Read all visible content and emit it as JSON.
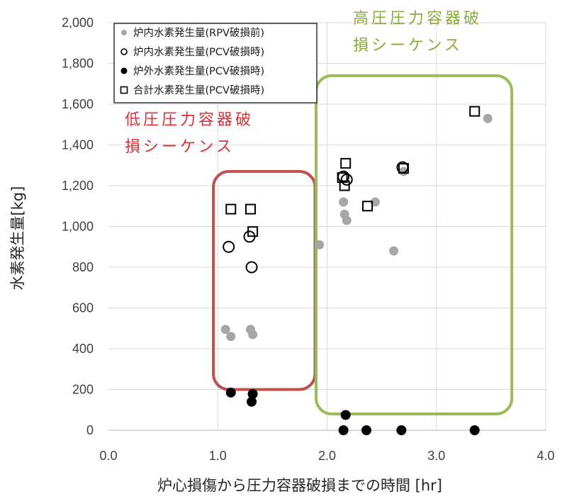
{
  "colors": {
    "grid": "#d9d9d9",
    "axis": "#bfbfbf",
    "gray_marker": "#a6a6a6",
    "black_marker": "#000000",
    "red_box": "#c0504d",
    "green_box": "#9bbb59",
    "red_text": "#d9303a",
    "green_text": "#8aac3c"
  },
  "chart_data": {
    "type": "scatter",
    "xlabel": "炉心損傷から圧力容器破損までの時間 [hr]",
    "ylabel": "水素発生量[kg]",
    "xlim": [
      0,
      4
    ],
    "ylim": [
      0,
      2000
    ],
    "x_ticks": [
      "0.0",
      "1.0",
      "2.0",
      "3.0",
      "4.0"
    ],
    "y_ticks": [
      "0",
      "200",
      "400",
      "600",
      "800",
      "1,000",
      "1,200",
      "1,400",
      "1,600",
      "1,800",
      "2,000"
    ],
    "grid": true,
    "legend_position": "top-left",
    "series": [
      {
        "name": "炉内水素発生量(RPV破損前)",
        "marker": "gray-filled-circle",
        "points": [
          [
            1.07,
            495
          ],
          [
            1.12,
            460
          ],
          [
            1.3,
            495
          ],
          [
            1.32,
            470
          ],
          [
            1.93,
            910
          ],
          [
            2.15,
            1120
          ],
          [
            2.16,
            1060
          ],
          [
            2.18,
            1030
          ],
          [
            2.44,
            1120
          ],
          [
            2.61,
            880
          ],
          [
            2.7,
            1270
          ],
          [
            3.47,
            1530
          ]
        ]
      },
      {
        "name": "炉内水素発生量(PCV破損時)",
        "marker": "open-circle",
        "points": [
          [
            1.1,
            900
          ],
          [
            1.29,
            950
          ],
          [
            1.31,
            800
          ],
          [
            2.15,
            1245
          ],
          [
            2.18,
            1230
          ],
          [
            2.69,
            1290
          ]
        ]
      },
      {
        "name": "炉外水素発生量(PCV破損時)",
        "marker": "black-filled-circle",
        "points": [
          [
            1.12,
            185
          ],
          [
            1.31,
            140
          ],
          [
            1.32,
            178
          ],
          [
            2.15,
            0
          ],
          [
            2.17,
            75
          ],
          [
            2.36,
            0
          ],
          [
            2.68,
            0
          ],
          [
            3.35,
            0
          ]
        ]
      },
      {
        "name": "合計水素発生量(PCV破損時)",
        "marker": "open-square",
        "points": [
          [
            1.12,
            1085
          ],
          [
            1.3,
            1085
          ],
          [
            1.32,
            975
          ],
          [
            2.14,
            1240
          ],
          [
            2.16,
            1200
          ],
          [
            2.17,
            1310
          ],
          [
            2.37,
            1100
          ],
          [
            2.7,
            1285
          ],
          [
            3.35,
            1565
          ]
        ]
      }
    ],
    "annotations": [
      {
        "text_lines": [
          "低圧圧力容器破",
          "損シーケンス"
        ],
        "color": "#d9303a",
        "region_x": [
          0.96,
          1.89
        ],
        "region_y": [
          200,
          1270
        ]
      },
      {
        "text_lines": [
          "高圧圧力容器破",
          "損シーケンス"
        ],
        "color": "#8aac3c",
        "region_x": [
          1.9,
          3.69
        ],
        "region_y": [
          80,
          1740
        ]
      }
    ]
  }
}
